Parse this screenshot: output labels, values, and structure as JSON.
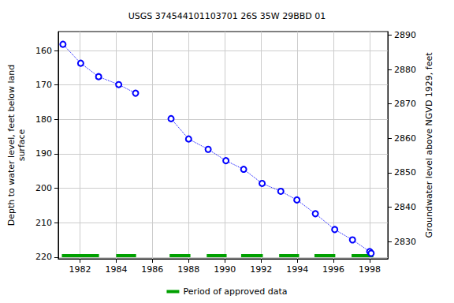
{
  "chart_data": {
    "type": "line",
    "title": "USGS 374544101103701 26S 35W 29BBD 01",
    "y_label": "Depth to water level, feet below land\nsurface",
    "y2_label": "Groundwater level above NGVD 1929, feet",
    "x": [
      1981.06,
      1982.04,
      1983.03,
      1984.14,
      1985.07,
      1986,
      1987.03,
      1988.0,
      1989.08,
      1990.06,
      1991.04,
      1992.06,
      1993.09,
      1993.98,
      1995.0,
      1996.07,
      1997.05,
      1998.0,
      1998.08
    ],
    "series": [
      {
        "values": [
          158.2,
          163.7,
          167.6,
          169.9,
          172.4,
          null,
          179.8,
          185.7,
          188.7,
          192.0,
          194.5,
          198.6,
          200.9,
          203.4,
          207.4,
          212.0,
          215.0,
          218.4,
          218.9
        ],
        "color": "#0000ff",
        "marker": "circle",
        "line_style": "dotted"
      }
    ],
    "approved_periods": {
      "name": "Period of approved data",
      "color": "#00a000",
      "periods": [
        [
          1981.0,
          1983.05
        ],
        [
          1984.0,
          1985.1
        ],
        [
          1986.95,
          1988.1
        ],
        [
          1989.0,
          1990.1
        ],
        [
          1990.9,
          1992.1
        ],
        [
          1993.0,
          1994.1
        ],
        [
          1994.95,
          1996.1
        ],
        [
          1997.0,
          1998.2
        ]
      ]
    },
    "xlim": [
      1980.8,
      1999.0
    ],
    "xticks": [
      1982,
      1984,
      1986,
      1988,
      1990,
      1992,
      1994,
      1996,
      1998
    ],
    "ylim": [
      154.5,
      220.5
    ],
    "yticks": [
      160,
      170,
      180,
      190,
      200,
      210,
      220
    ],
    "y2lim": [
      2825,
      2891
    ],
    "y2ticks": [
      2830,
      2840,
      2850,
      2860,
      2870,
      2880,
      2890
    ],
    "grid": true
  }
}
